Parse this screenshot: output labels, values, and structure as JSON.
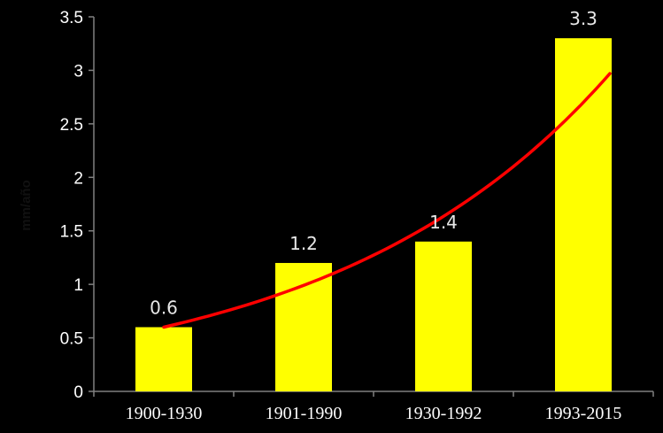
{
  "chart_data": {
    "type": "bar",
    "categories": [
      "1900-1930",
      "1901-1990",
      "1930-1992",
      "1993-2015"
    ],
    "values": [
      0.6,
      1.2,
      1.4,
      3.3
    ],
    "data_labels": [
      "0.6",
      "1.2",
      "1.4",
      "3.3"
    ],
    "trendline": {
      "type": "exponential",
      "start_value": 0.6,
      "end_value": 2.97,
      "color": "#ff0000"
    },
    "ylabel": "mm/año",
    "ylim": [
      0,
      3.5
    ],
    "yticks": [
      0,
      0.5,
      1,
      1.5,
      2,
      2.5,
      3,
      3.5
    ],
    "ytick_labels": [
      "0",
      "0.5",
      "1",
      "1.5",
      "2",
      "2.5",
      "3",
      "3.5"
    ],
    "grid": false,
    "legend": "none",
    "colors": {
      "background": "#000000",
      "bar": "#ffff00",
      "text": "#ffffff",
      "axis": "#808080"
    }
  }
}
